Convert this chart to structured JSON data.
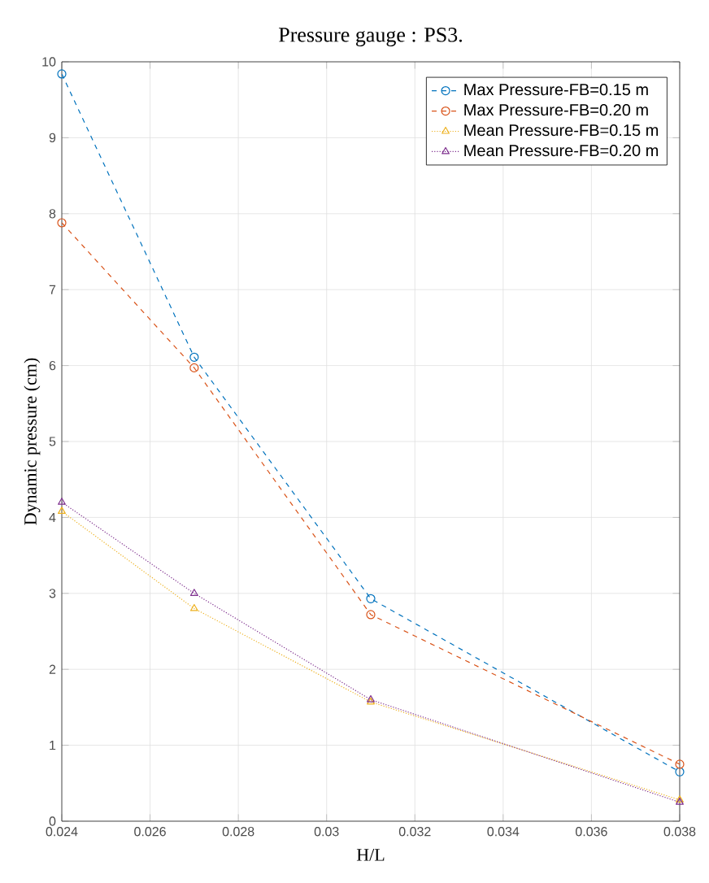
{
  "chart_data": {
    "type": "line",
    "title": "Pressure gauge : PS3.",
    "xlabel": "H/L",
    "ylabel": "Dynamic pressure (cm)",
    "x": [
      0.024,
      0.027,
      0.031,
      0.038
    ],
    "xlim": [
      0.024,
      0.038
    ],
    "xticks": [
      0.024,
      0.026,
      0.028,
      0.03,
      0.032,
      0.034,
      0.036,
      0.038
    ],
    "ylim": [
      0,
      10
    ],
    "yticks": [
      0,
      1,
      2,
      3,
      4,
      5,
      6,
      7,
      8,
      9,
      10
    ],
    "grid": true,
    "legend": "top right",
    "series": [
      {
        "name": "Max Pressure-FB=0.15 m",
        "color": "#0072bd",
        "marker": "circle",
        "line_style": "dashed",
        "values": [
          9.84,
          6.11,
          2.93,
          0.65
        ]
      },
      {
        "name": "Max Pressure-FB=0.20 m",
        "color": "#d95319",
        "marker": "circle",
        "line_style": "dashed",
        "values": [
          7.88,
          5.97,
          2.72,
          0.75
        ]
      },
      {
        "name": "Mean Pressure-FB=0.15 m",
        "color": "#edb120",
        "marker": "triangle",
        "line_style": "dotted",
        "values": [
          4.08,
          2.8,
          1.57,
          0.28
        ]
      },
      {
        "name": "Mean Pressure-FB=0.20 m",
        "color": "#7e2f8e",
        "marker": "triangle",
        "line_style": "dotted",
        "values": [
          4.2,
          3.0,
          1.6,
          0.25
        ]
      }
    ]
  }
}
